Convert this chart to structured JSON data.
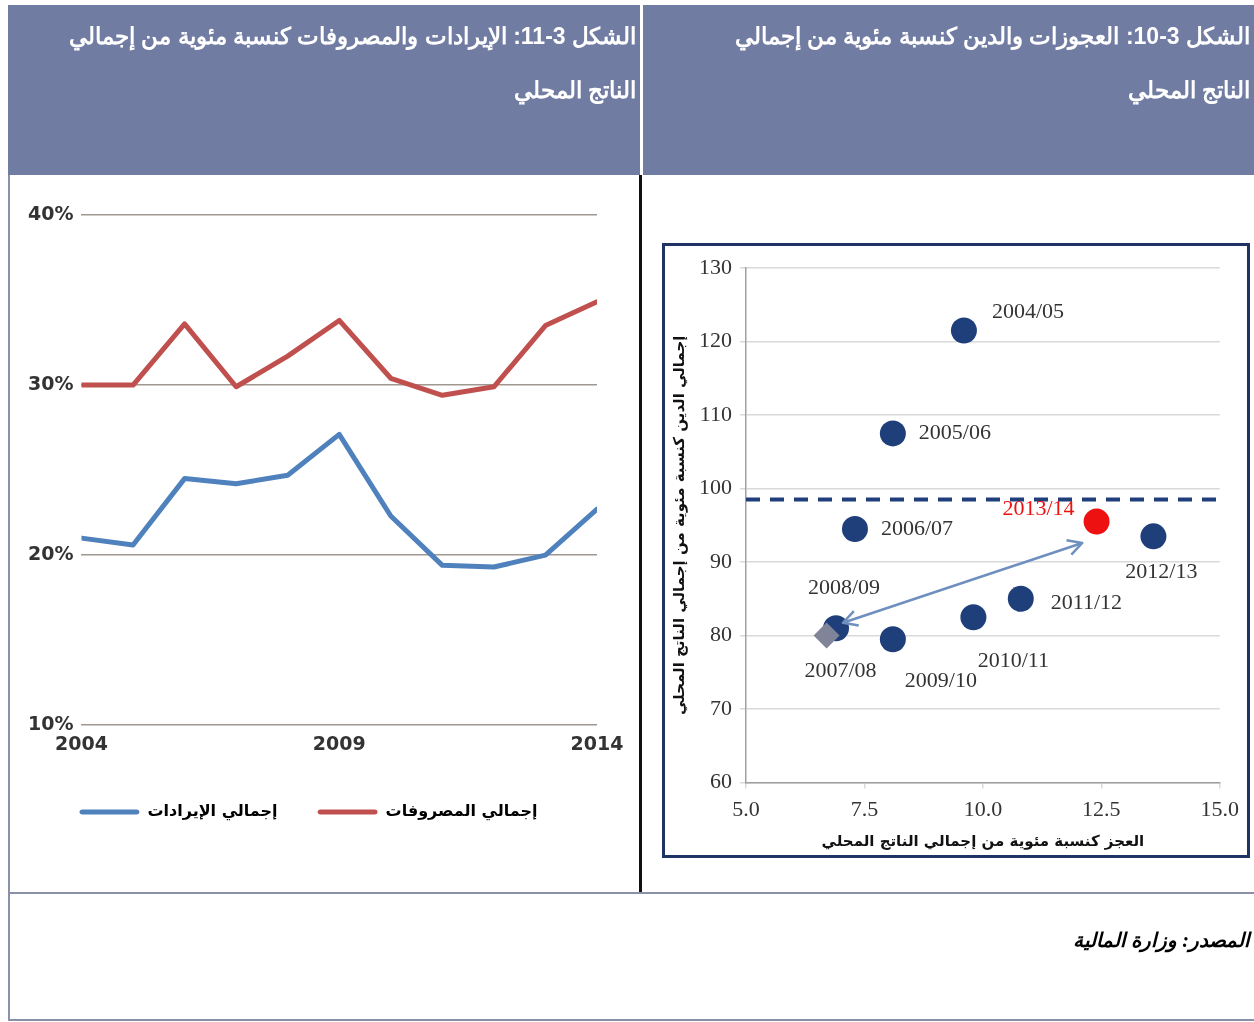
{
  "chart_data": [
    {
      "type": "scatter",
      "title": "الشكل 3-10: العجوزات والدين كنسبة مئوية من إجمالي الناتج المحلي",
      "xlabel": "العجز كنسبة مئوية من إجمالي الناتج المحلي",
      "ylabel": "إجمالي الدين كنسبة مئوية من إجمالي الناتج المحلي",
      "xlim": [
        5,
        15
      ],
      "xticks": [
        {
          "value": 5,
          "label": "5.0"
        },
        {
          "value": 7.5,
          "label": "7.5"
        },
        {
          "value": 10,
          "label": "10.0"
        },
        {
          "value": 12.5,
          "label": "12.5"
        },
        {
          "value": 15,
          "label": "15.0"
        }
      ],
      "ylim": [
        60,
        130
      ],
      "yticks": [
        60,
        70,
        80,
        90,
        100,
        110,
        120,
        130
      ],
      "grid": "y",
      "legend": false,
      "series": [
        {
          "marker": "circle",
          "x": [
            9.6,
            8.1,
            7.3,
            6.9,
            8.1,
            9.8,
            10.8,
            13.6,
            12.4
          ],
          "values": [
            121.5,
            107.5,
            94.5,
            81,
            79.5,
            82.5,
            85,
            93.5,
            95.5
          ],
          "colors": [
            "#1f3f7a",
            "#1f3f7a",
            "#1f3f7a",
            "#1f3f7a",
            "#1f3f7a",
            "#1f3f7a",
            "#1f3f7a",
            "#1f3f7a",
            "#ee1111"
          ]
        },
        {
          "marker": "diamond",
          "x": [
            6.7
          ],
          "values": [
            80
          ],
          "colors": [
            "#7f8499"
          ]
        }
      ],
      "ref_lines": [
        {
          "axis": "y",
          "value": 98.5,
          "color": "#1f3f7a",
          "line_style": "dashed"
        }
      ],
      "annotations": [
        {
          "text": "2004/05",
          "x": 9.6,
          "y": 121.5
        },
        {
          "text": "2005/06",
          "x": 8.1,
          "y": 107.5
        },
        {
          "text": "2006/07",
          "x": 7.3,
          "y": 94.5
        },
        {
          "text": "2007/08",
          "x": 6.7,
          "y": 80
        },
        {
          "text": "2008/09",
          "x": 6.9,
          "y": 81
        },
        {
          "text": "2009/10",
          "x": 8.1,
          "y": 79.5
        },
        {
          "text": "2010/11",
          "x": 9.8,
          "y": 82.5
        },
        {
          "text": "2011/12",
          "x": 10.8,
          "y": 85
        },
        {
          "text": "2012/13",
          "x": 13.6,
          "y": 93.5
        },
        {
          "text": "2013/14",
          "x": 12.4,
          "y": 95.5
        },
        "المصدر: وزارة المالية"
      ]
    },
    {
      "type": "line",
      "title": "الشكل 3-11: الإيرادات والمصروفات كنسبة مئوية من إجمالي الناتج المحلي",
      "x": [
        2004,
        2005,
        2006,
        2007,
        2008,
        2009,
        2010,
        2011,
        2012,
        2013,
        2014
      ],
      "xlim": [
        2004,
        2014
      ],
      "xticks": [
        2004,
        2009,
        2014
      ],
      "ylim": [
        10,
        40
      ],
      "yticks": [
        {
          "value": 10,
          "label": "10%"
        },
        {
          "value": 20,
          "label": "20%"
        },
        {
          "value": 30,
          "label": "30%"
        },
        {
          "value": 40,
          "label": "40%"
        }
      ],
      "grid": "y",
      "legend": "bottom",
      "marker": "none",
      "line_style": "solid",
      "series": [
        {
          "name": "إجمالي الإيرادات",
          "color": "#4f81bd",
          "values": [
            21.0,
            20.6,
            24.5,
            24.2,
            24.7,
            27.1,
            22.3,
            19.4,
            19.3,
            20.0,
            22.7
          ]
        },
        {
          "name": "إجمالي المصروفات",
          "color": "#c0504d",
          "values": [
            30.0,
            30.0,
            33.6,
            29.9,
            31.7,
            33.8,
            30.4,
            29.4,
            29.9,
            33.5,
            34.9
          ]
        }
      ]
    }
  ]
}
